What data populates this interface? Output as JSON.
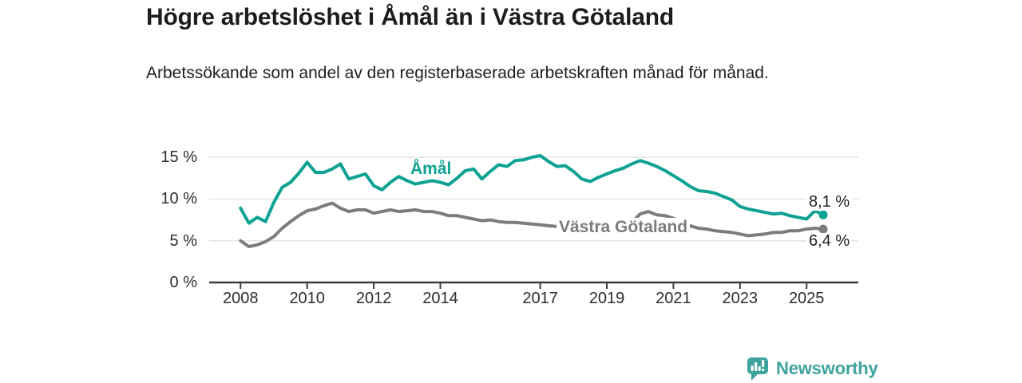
{
  "header": {
    "title": "Högre arbetslöshet i Åmål än i Västra Götaland",
    "subtitle": "Arbetssökande som andel av den registerbaserade arbetskraften månad för månad."
  },
  "chart_data": {
    "type": "line",
    "title": "Högre arbetslöshet i Åmål än i Västra Götaland",
    "subtitle": "Arbetssökande som andel av den registerbaserade arbetskraften månad för månad.",
    "xlabel": "",
    "ylabel": "",
    "y_unit": "%",
    "ylim": [
      0,
      16
    ],
    "xlim": [
      2008,
      2025.6
    ],
    "grid": "horizontal",
    "legend_position": "inline-labels",
    "colors": {
      "amal": "#0EA293",
      "vastra_gotaland": "#7C7C7F",
      "gridline": "#E4E4E4",
      "axis": "#3B3B3B",
      "brand": "#3EA39D"
    },
    "y_ticks": [
      {
        "value": 0,
        "label": "0 %"
      },
      {
        "value": 5,
        "label": "5 %"
      },
      {
        "value": 10,
        "label": "10 %"
      },
      {
        "value": 15,
        "label": "15 %"
      }
    ],
    "x_ticks": [
      {
        "value": 2008,
        "label": "2008"
      },
      {
        "value": 2010,
        "label": "2010"
      },
      {
        "value": 2012,
        "label": "2012"
      },
      {
        "value": 2014,
        "label": "2014"
      },
      {
        "value": 2017,
        "label": "2017"
      },
      {
        "value": 2019,
        "label": "2019"
      },
      {
        "value": 2021,
        "label": "2021"
      },
      {
        "value": 2023,
        "label": "2023"
      },
      {
        "value": 2025,
        "label": "2025"
      }
    ],
    "x": [
      2008,
      2008.25,
      2008.5,
      2008.75,
      2009,
      2009.25,
      2009.5,
      2009.75,
      2010,
      2010.25,
      2010.5,
      2010.75,
      2011,
      2011.25,
      2011.5,
      2011.75,
      2012,
      2012.25,
      2012.5,
      2012.75,
      2013,
      2013.25,
      2013.5,
      2013.75,
      2014,
      2014.25,
      2014.5,
      2014.75,
      2015,
      2015.25,
      2015.5,
      2015.75,
      2016,
      2016.25,
      2016.5,
      2016.75,
      2017,
      2017.25,
      2017.5,
      2017.75,
      2018,
      2018.25,
      2018.5,
      2018.75,
      2019,
      2019.25,
      2019.5,
      2019.75,
      2020,
      2020.25,
      2020.5,
      2020.75,
      2021,
      2021.25,
      2021.5,
      2021.75,
      2022,
      2022.25,
      2022.5,
      2022.75,
      2023,
      2023.25,
      2023.5,
      2023.75,
      2024,
      2024.25,
      2024.5,
      2024.75,
      2025,
      2025.25,
      2025.5
    ],
    "series": [
      {
        "id": "amal",
        "name": "Åmål",
        "color": "#0EA293",
        "end_label": "8,1 %",
        "end_value": 8.1,
        "values": [
          8.9,
          7.1,
          7.8,
          7.3,
          9.6,
          11.4,
          12.0,
          13.1,
          14.4,
          13.2,
          13.2,
          13.6,
          14.2,
          12.4,
          12.7,
          13.0,
          11.6,
          11.1,
          12.0,
          12.7,
          12.2,
          11.8,
          12.0,
          12.2,
          12.0,
          11.7,
          12.5,
          13.4,
          13.6,
          12.4,
          13.3,
          14.1,
          13.9,
          14.6,
          14.7,
          15.0,
          15.2,
          14.5,
          13.9,
          14.0,
          13.3,
          12.4,
          12.1,
          12.6,
          13.0,
          13.4,
          13.7,
          14.2,
          14.6,
          14.3,
          13.9,
          13.4,
          12.8,
          12.2,
          11.5,
          11.0,
          10.9,
          10.7,
          10.3,
          9.9,
          9.1,
          8.8,
          8.6,
          8.4,
          8.2,
          8.3,
          8.0,
          7.8,
          7.6,
          8.6,
          8.1
        ]
      },
      {
        "id": "vastra-gotaland",
        "name": "Västra Götaland",
        "color": "#7C7C7F",
        "end_label": "6,4 %",
        "end_value": 6.4,
        "values": [
          5.0,
          4.3,
          4.5,
          4.9,
          5.5,
          6.5,
          7.3,
          8.0,
          8.6,
          8.8,
          9.2,
          9.5,
          8.9,
          8.5,
          8.7,
          8.7,
          8.3,
          8.5,
          8.7,
          8.5,
          8.6,
          8.7,
          8.5,
          8.5,
          8.3,
          8.0,
          8.0,
          7.8,
          7.6,
          7.4,
          7.5,
          7.3,
          7.2,
          7.2,
          7.1,
          7.0,
          6.9,
          6.8,
          6.7,
          6.6,
          6.5,
          6.5,
          6.4,
          6.4,
          6.4,
          6.4,
          6.5,
          7.2,
          8.2,
          8.5,
          8.1,
          8.0,
          7.7,
          7.2,
          6.8,
          6.5,
          6.4,
          6.2,
          6.1,
          6.0,
          5.8,
          5.6,
          5.7,
          5.8,
          6.0,
          6.0,
          6.2,
          6.2,
          6.4,
          6.5,
          6.4
        ]
      }
    ]
  },
  "footer": {
    "brand": "Newsworthy",
    "brand_color": "#3EA39D"
  }
}
